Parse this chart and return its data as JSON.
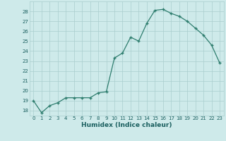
{
  "x": [
    0,
    1,
    2,
    3,
    4,
    5,
    6,
    7,
    8,
    9,
    10,
    11,
    12,
    13,
    14,
    15,
    16,
    17,
    18,
    19,
    20,
    21,
    22,
    23
  ],
  "y": [
    19,
    17.8,
    18.5,
    18.8,
    19.3,
    19.3,
    19.3,
    19.3,
    19.8,
    19.9,
    23.3,
    23.8,
    25.4,
    25.0,
    26.8,
    28.1,
    28.2,
    27.8,
    27.5,
    27.0,
    26.3,
    25.6,
    24.6,
    22.8
  ],
  "line_color": "#2e7d6e",
  "marker": "+",
  "marker_size": 3.0,
  "bg_color": "#ceeaea",
  "grid_color": "#aacece",
  "xlabel": "Humidex (Indice chaleur)",
  "ylim": [
    17.5,
    29
  ],
  "xlim": [
    -0.5,
    23.5
  ],
  "yticks": [
    18,
    19,
    20,
    21,
    22,
    23,
    24,
    25,
    26,
    27,
    28
  ],
  "xticks": [
    0,
    1,
    2,
    3,
    4,
    5,
    6,
    7,
    8,
    9,
    10,
    11,
    12,
    13,
    14,
    15,
    16,
    17,
    18,
    19,
    20,
    21,
    22,
    23
  ],
  "tick_fontsize": 5.0,
  "xlabel_fontsize": 6.5,
  "label_color": "#1a5f5f",
  "linewidth": 0.9
}
